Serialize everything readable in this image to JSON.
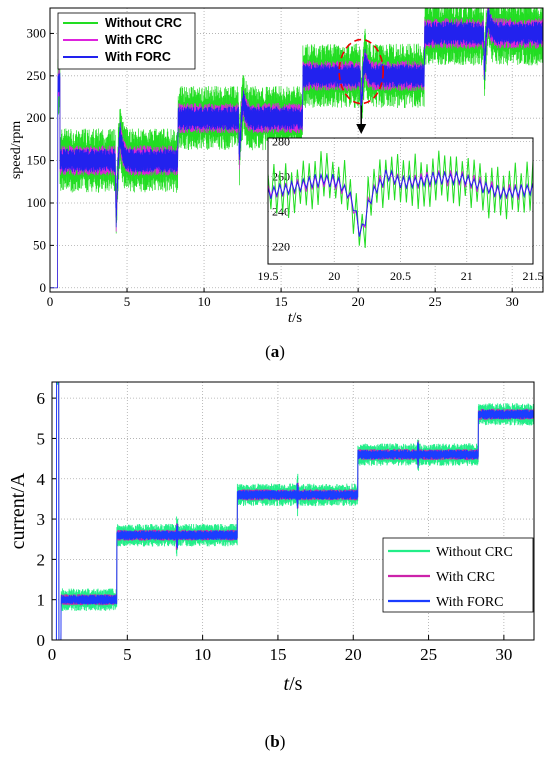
{
  "chart_data": [
    {
      "type": "line",
      "caption": "a",
      "ylabel": "speed/rpm",
      "xlabel_italic": "t",
      "xlabel_unit": "/s",
      "xlim": [
        0,
        32
      ],
      "ylim": [
        -5,
        330
      ],
      "xticks": [
        0,
        5,
        10,
        15,
        20,
        25,
        30
      ],
      "yticks": [
        0,
        50,
        100,
        150,
        200,
        250,
        300
      ],
      "grid": true,
      "legend_position": "top-left",
      "series": [
        {
          "name": "Without CRC",
          "color": "#22dd22",
          "ripple": 38
        },
        {
          "name": "With CRC",
          "color": "#dd22dd",
          "ripple": 18
        },
        {
          "name": "With FORC",
          "color": "#2222ee",
          "ripple": 14
        }
      ],
      "steps": [
        {
          "t": 0.5,
          "speed": 150
        },
        {
          "t": 8.3,
          "speed": 200
        },
        {
          "t": 16.4,
          "speed": 250
        },
        {
          "t": 24.3,
          "speed": 300
        }
      ],
      "disturbances": [
        {
          "t": 4.3,
          "dip": 70
        },
        {
          "t": 12.3,
          "dip": 45
        },
        {
          "t": 20.2,
          "dip": 40
        },
        {
          "t": 28.2,
          "dip": 45
        }
      ],
      "inset": {
        "xlim": [
          19.5,
          21.5
        ],
        "ylim": [
          210,
          282
        ],
        "xticks": [
          19.5,
          20,
          20.5,
          21,
          21.5
        ],
        "yticks": [
          220,
          240,
          260,
          280
        ],
        "center": 255,
        "dip_t": 20.2
      }
    },
    {
      "type": "line",
      "caption": "b",
      "ylabel": "current/A",
      "xlabel_italic": "t",
      "xlabel_unit": "/s",
      "xlim": [
        0,
        32
      ],
      "ylim": [
        0,
        6.4
      ],
      "xticks": [
        0,
        5,
        10,
        15,
        20,
        25,
        30
      ],
      "yticks": [
        0,
        1,
        2,
        3,
        4,
        5,
        6
      ],
      "grid": true,
      "legend_position": "bottom-right",
      "series": [
        {
          "name": "Without CRC",
          "color": "#22ee88",
          "ripple": 0.28
        },
        {
          "name": "With CRC",
          "color": "#cc22aa",
          "ripple": 0.14
        },
        {
          "name": "With FORC",
          "color": "#1a3dff",
          "ripple": 0.12
        }
      ],
      "steps": [
        {
          "t": 0.6,
          "current": 1.0
        },
        {
          "t": 4.3,
          "current": 2.6
        },
        {
          "t": 12.3,
          "current": 3.6
        },
        {
          "t": 20.3,
          "current": 4.6
        },
        {
          "t": 28.3,
          "current": 5.6
        }
      ],
      "spikes": [
        8.3,
        16.3,
        24.3
      ]
    }
  ]
}
